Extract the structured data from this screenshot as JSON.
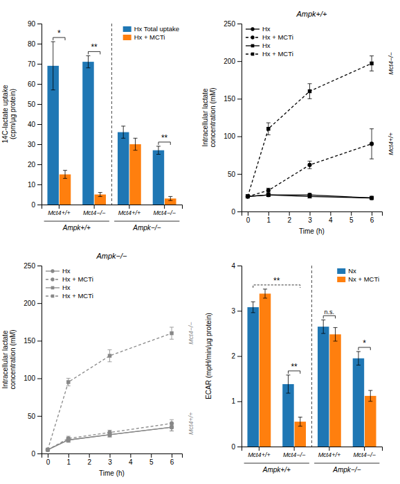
{
  "chart_data": [
    {
      "type": "bar",
      "categories": [
        "Mct4+/+",
        "Mct4−/−",
        "Mct4+/+",
        "Mct4−/−"
      ],
      "groups": [
        "Ampk+/+",
        "Ampk+/+",
        "Ampk−/−",
        "Ampk−/−"
      ],
      "series": [
        {
          "name": "Hx Total uptake",
          "values": [
            69,
            71,
            36,
            27
          ],
          "errors": [
            12,
            3,
            3,
            2
          ]
        },
        {
          "name": "Hx + MCTi",
          "values": [
            15,
            5,
            30,
            3
          ],
          "errors": [
            2,
            1,
            3,
            1
          ]
        }
      ],
      "ylabel": "14C-lactate uptake\n(cpm/µg protein)",
      "ylim": [
        0,
        90
      ],
      "yticks": [
        0,
        10,
        20,
        30,
        40,
        50,
        60,
        70,
        80,
        90
      ],
      "legend": "upper right",
      "annotations": [
        {
          "text": "*",
          "x": [
            0
          ]
        },
        {
          "text": "**",
          "x": [
            1
          ]
        },
        {
          "text": "**",
          "x": [
            3
          ]
        }
      ]
    },
    {
      "type": "line",
      "title": "Ampk+/+",
      "x": [
        0,
        1,
        3,
        6
      ],
      "xlim": [
        -0.3,
        6.5
      ],
      "xticks": [
        0,
        1,
        2,
        3,
        4,
        5,
        6
      ],
      "ylim": [
        0,
        250
      ],
      "yticks": [
        0,
        50,
        100,
        150,
        200,
        250
      ],
      "xlabel": "Time (h)",
      "ylabel": "Intracellular lactate\nconcentration (mM)",
      "color": "#000000",
      "legend": "upper left",
      "series": [
        {
          "name": "Hx",
          "marker": "circle",
          "line_style": "solid",
          "values": [
            20,
            22,
            22,
            18
          ],
          "errors": [
            2,
            2,
            2,
            2
          ]
        },
        {
          "name": "Hx + MCTi",
          "marker": "circle",
          "line_style": "dashed",
          "values": [
            20,
            28,
            62,
            90
          ],
          "errors": [
            2,
            3,
            5,
            20
          ]
        },
        {
          "name": "Hx",
          "marker": "square",
          "line_style": "solid",
          "values": [
            20,
            22,
            20,
            18
          ],
          "errors": [
            2,
            2,
            2,
            2
          ]
        },
        {
          "name": "Hx + MCTi",
          "marker": "square",
          "line_style": "dashed",
          "values": [
            20,
            110,
            160,
            197
          ],
          "errors": [
            2,
            8,
            10,
            10
          ]
        }
      ],
      "annotations": [
        {
          "text": "Mct4+/+",
          "series": 1
        },
        {
          "text": "Mct4−/−",
          "series": 3
        }
      ]
    },
    {
      "type": "line",
      "title": "Ampk−/−",
      "x": [
        0,
        1,
        3,
        6
      ],
      "xlim": [
        -0.3,
        6.5
      ],
      "xticks": [
        0,
        1,
        2,
        3,
        4,
        5,
        6
      ],
      "ylim": [
        0,
        250
      ],
      "yticks": [
        0,
        50,
        100,
        150,
        200,
        250
      ],
      "xlabel": "Time (h)",
      "ylabel": "Intracellular lactate\nconcentration (mM)",
      "color": "#888888",
      "legend": "upper left",
      "series": [
        {
          "name": "Hx",
          "marker": "circle",
          "line_style": "solid",
          "values": [
            5,
            18,
            25,
            35
          ],
          "errors": [
            1,
            3,
            3,
            5
          ]
        },
        {
          "name": "Hx + MCTi",
          "marker": "circle",
          "line_style": "dashed",
          "values": [
            5,
            20,
            28,
            40
          ],
          "errors": [
            1,
            3,
            3,
            5
          ]
        },
        {
          "name": "Hx",
          "marker": "square",
          "line_style": "solid",
          "values": [
            5,
            18,
            25,
            35
          ],
          "errors": [
            1,
            3,
            3,
            5
          ]
        },
        {
          "name": "Hx + MCTi",
          "marker": "square",
          "line_style": "dashed",
          "values": [
            5,
            95,
            130,
            160
          ],
          "errors": [
            1,
            5,
            8,
            8
          ]
        }
      ],
      "annotations": [
        {
          "text": "Mct4+/+",
          "series": 1
        },
        {
          "text": "Mct4−/−",
          "series": 3
        }
      ]
    },
    {
      "type": "bar",
      "categories": [
        "Mct4+/+",
        "Mct4−/−",
        "Mct4+/+",
        "Mct4−/−"
      ],
      "groups": [
        "Ampk+/+",
        "Ampk+/+",
        "Ampk−/−",
        "Ampk−/−"
      ],
      "series": [
        {
          "name": "Nx",
          "values": [
            3.08,
            1.38,
            2.65,
            1.95
          ],
          "errors": [
            0.12,
            0.2,
            0.15,
            0.15
          ]
        },
        {
          "name": "Nx + MCTi",
          "values": [
            3.38,
            0.55,
            2.48,
            1.12
          ],
          "errors": [
            0.1,
            0.1,
            0.15,
            0.12
          ]
        }
      ],
      "ylabel": "ECAR (mpH/min/µg protein)",
      "ylim": [
        0,
        4
      ],
      "yticks": [
        0,
        1,
        2,
        3,
        4
      ],
      "legend": "upper right",
      "annotations": [
        {
          "text": "**",
          "x": [
            0,
            1
          ]
        },
        {
          "text": "**",
          "x": [
            1
          ]
        },
        {
          "text": "n.s.",
          "x": [
            2
          ]
        },
        {
          "text": "*",
          "x": [
            3
          ]
        }
      ]
    }
  ]
}
